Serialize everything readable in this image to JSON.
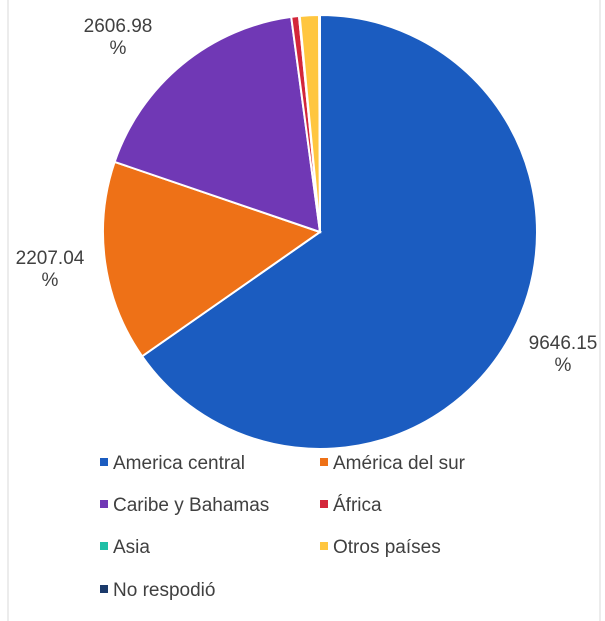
{
  "chart_data": {
    "type": "pie",
    "categories": [
      "America central",
      "América del sur",
      "Caribe y Bahamas",
      "África",
      "Asia",
      "Otros países",
      "No respodió"
    ],
    "values": [
      9646.15,
      2207.04,
      2606.98,
      85,
      8,
      210,
      10
    ],
    "value_labels": [
      "9646.15 %",
      "2207.04 %",
      "2606.98 %",
      null,
      null,
      null,
      null
    ],
    "colors": [
      "#1b5cc0",
      "#ee7117",
      "#7038b5",
      "#d3263a",
      "#1fbfa6",
      "#ffc63f",
      "#1b3a6b"
    ],
    "legend": "bottom"
  }
}
